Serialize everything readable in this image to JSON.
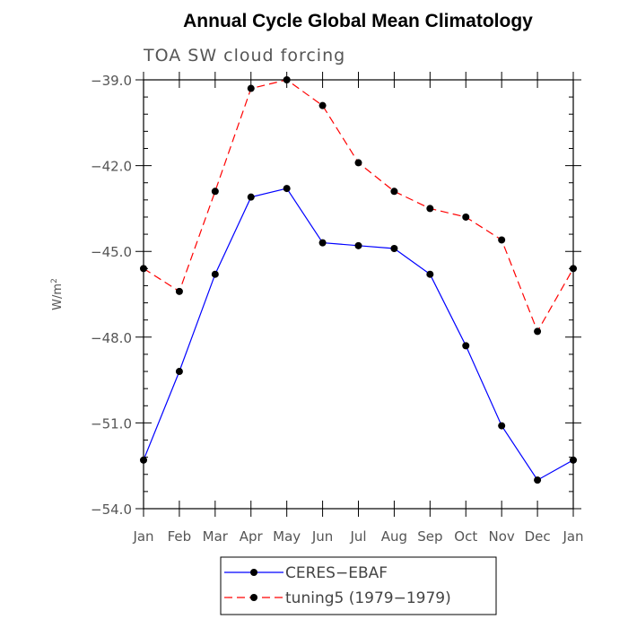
{
  "chart_data": {
    "type": "line",
    "title": "Annual Cycle Global Mean Climatology",
    "subtitle": "TOA SW cloud forcing",
    "ylabel": "W/m",
    "ylabel_sup": "2",
    "xlabel": "",
    "categories": [
      "Jan",
      "Feb",
      "Mar",
      "Apr",
      "May",
      "Jun",
      "Jul",
      "Aug",
      "Sep",
      "Oct",
      "Nov",
      "Dec",
      "Jan"
    ],
    "ylim": [
      -54.0,
      -39.0
    ],
    "yticks": [
      -54.0,
      -51.0,
      -48.0,
      -45.0,
      -42.0,
      -39.0
    ],
    "ytick_labels": [
      "−54.0",
      "−51.0",
      "−48.0",
      "−45.0",
      "−42.0",
      "−39.0"
    ],
    "minor_y_step": 0.6,
    "grid": false,
    "legend_position": "bottom-center",
    "series": [
      {
        "name": "CERES−EBAF",
        "color": "#0000ff",
        "dash": "solid",
        "values": [
          -52.3,
          -49.2,
          -45.8,
          -43.1,
          -42.8,
          -44.7,
          -44.8,
          -44.9,
          -45.8,
          -48.3,
          -51.1,
          -53.0,
          -52.3
        ]
      },
      {
        "name": "tuning5 (1979−1979)",
        "color": "#ff0000",
        "dash": "dashed",
        "values": [
          -45.6,
          -46.4,
          -42.9,
          -39.3,
          -39.0,
          -39.9,
          -41.9,
          -42.9,
          -43.5,
          -43.8,
          -44.6,
          -47.8,
          -45.6
        ]
      }
    ]
  }
}
